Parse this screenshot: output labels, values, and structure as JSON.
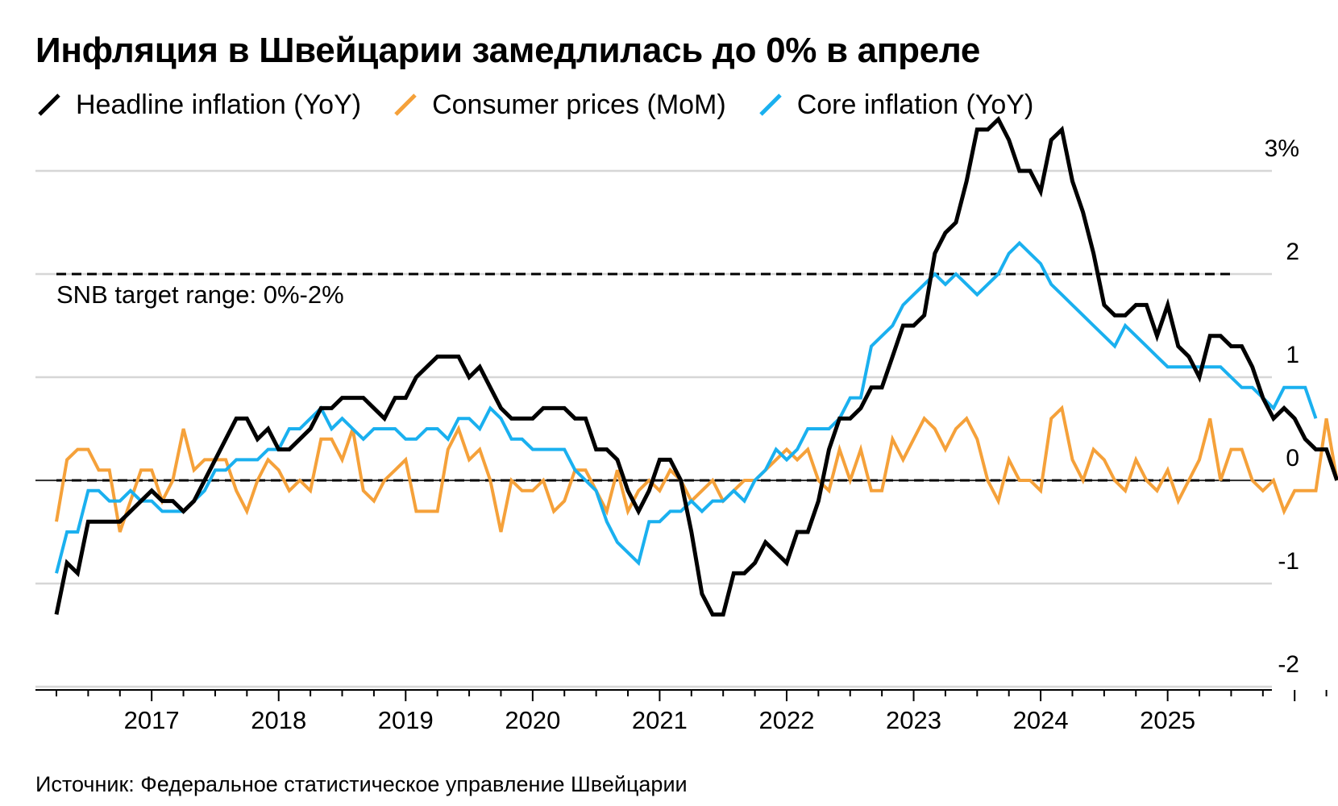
{
  "title": "Инфляция в Швейцарии замедлилась до 0% в апреле",
  "source": "Источник: Федеральное статистическое управление Швейцарии",
  "colors": {
    "headline": "#000000",
    "mom": "#f5a13a",
    "core": "#1ab0ef",
    "grid": "#d6d6d6"
  },
  "chart_data": {
    "type": "line",
    "x_start": "2016-04",
    "x_end": "2025-04",
    "xtick_labels": [
      "2017",
      "2018",
      "2019",
      "2020",
      "2021",
      "2022",
      "2023",
      "2024",
      "2025"
    ],
    "ytick_labels": [
      "3%",
      "2",
      "1",
      "0",
      "-1",
      "-2"
    ],
    "ylim": [
      -2,
      3.5
    ],
    "grid": true,
    "annotation": "SNB target range: 0%-2%",
    "reference_lines": [
      0,
      2
    ],
    "series": [
      {
        "name": "Headline inflation (YoY)",
        "values": [
          -1.3,
          -0.8,
          -0.9,
          -0.4,
          -0.4,
          -0.4,
          -0.4,
          -0.3,
          -0.2,
          -0.1,
          -0.2,
          -0.2,
          -0.3,
          -0.2,
          0.0,
          0.2,
          0.4,
          0.6,
          0.6,
          0.4,
          0.5,
          0.3,
          0.3,
          0.4,
          0.5,
          0.7,
          0.7,
          0.8,
          0.8,
          0.8,
          0.7,
          0.6,
          0.8,
          0.8,
          1.0,
          1.1,
          1.2,
          1.2,
          1.2,
          1.0,
          1.1,
          0.9,
          0.7,
          0.6,
          0.6,
          0.6,
          0.7,
          0.7,
          0.7,
          0.6,
          0.6,
          0.3,
          0.3,
          0.2,
          -0.1,
          -0.3,
          -0.1,
          0.2,
          0.2,
          0.0,
          -0.5,
          -1.1,
          -1.3,
          -1.3,
          -0.9,
          -0.9,
          -0.8,
          -0.6,
          -0.7,
          -0.8,
          -0.5,
          -0.5,
          -0.2,
          0.3,
          0.6,
          0.6,
          0.7,
          0.9,
          0.9,
          1.2,
          1.5,
          1.5,
          1.6,
          2.2,
          2.4,
          2.5,
          2.9,
          3.4,
          3.4,
          3.5,
          3.3,
          3.0,
          3.0,
          2.8,
          3.3,
          3.4,
          2.9,
          2.6,
          2.2,
          1.7,
          1.6,
          1.6,
          1.7,
          1.7,
          1.4,
          1.7,
          1.3,
          1.2,
          1.0,
          1.4,
          1.4,
          1.3,
          1.3,
          1.1,
          0.8,
          0.6,
          0.7,
          0.6,
          0.4,
          0.3,
          0.3,
          0.0
        ]
      },
      {
        "name": "Consumer prices (MoM)",
        "values": [
          -0.4,
          0.2,
          0.3,
          0.3,
          0.1,
          0.1,
          -0.5,
          -0.2,
          0.1,
          0.1,
          -0.2,
          0.0,
          0.5,
          0.1,
          0.2,
          0.2,
          0.2,
          -0.1,
          -0.3,
          0.0,
          0.2,
          0.1,
          -0.1,
          0.0,
          -0.1,
          0.4,
          0.4,
          0.2,
          0.5,
          -0.1,
          -0.2,
          0.0,
          0.1,
          0.2,
          -0.3,
          -0.3,
          -0.3,
          0.3,
          0.5,
          0.2,
          0.3,
          0.0,
          -0.5,
          0.0,
          -0.1,
          -0.1,
          0.0,
          -0.3,
          -0.2,
          0.1,
          0.1,
          -0.1,
          -0.3,
          0.1,
          -0.3,
          -0.1,
          0.0,
          -0.1,
          0.1,
          0.0,
          -0.2,
          -0.1,
          0.0,
          -0.2,
          -0.1,
          0.0,
          0.0,
          0.1,
          0.2,
          0.3,
          0.2,
          0.3,
          0.0,
          -0.1,
          0.3,
          0.0,
          0.3,
          -0.1,
          -0.1,
          0.4,
          0.2,
          0.4,
          0.6,
          0.5,
          0.3,
          0.5,
          0.6,
          0.4,
          0.0,
          -0.2,
          0.2,
          0.0,
          0.0,
          -0.1,
          0.6,
          0.7,
          0.2,
          0.0,
          0.3,
          0.2,
          0.0,
          -0.1,
          0.2,
          0.0,
          -0.1,
          0.1,
          -0.2,
          0.0,
          0.2,
          0.6,
          0.0,
          0.3,
          0.3,
          0.0,
          -0.1,
          0.0,
          -0.3,
          -0.1,
          -0.1,
          -0.1,
          0.6,
          0.0
        ]
      },
      {
        "name": "Core inflation (YoY)",
        "values": [
          -0.9,
          -0.5,
          -0.5,
          -0.1,
          -0.1,
          -0.2,
          -0.2,
          -0.1,
          -0.2,
          -0.2,
          -0.3,
          -0.3,
          -0.3,
          -0.2,
          -0.1,
          0.1,
          0.1,
          0.2,
          0.2,
          0.2,
          0.3,
          0.3,
          0.5,
          0.5,
          0.6,
          0.7,
          0.5,
          0.6,
          0.5,
          0.4,
          0.5,
          0.5,
          0.5,
          0.4,
          0.4,
          0.5,
          0.5,
          0.4,
          0.6,
          0.6,
          0.5,
          0.7,
          0.6,
          0.4,
          0.4,
          0.3,
          0.3,
          0.3,
          0.3,
          0.1,
          0.0,
          -0.1,
          -0.4,
          -0.6,
          -0.7,
          -0.8,
          -0.4,
          -0.4,
          -0.3,
          -0.3,
          -0.2,
          -0.3,
          -0.2,
          -0.2,
          -0.1,
          -0.2,
          0.0,
          0.1,
          0.3,
          0.2,
          0.3,
          0.5,
          0.5,
          0.5,
          0.6,
          0.8,
          0.8,
          1.3,
          1.4,
          1.5,
          1.7,
          1.8,
          1.9,
          2.0,
          1.9,
          2.0,
          1.9,
          1.8,
          1.9,
          2.0,
          2.2,
          2.3,
          2.2,
          2.1,
          1.9,
          1.8,
          1.7,
          1.6,
          1.5,
          1.4,
          1.3,
          1.5,
          1.4,
          1.3,
          1.2,
          1.1,
          1.1,
          1.1,
          1.1,
          1.1,
          1.1,
          1.0,
          0.9,
          0.9,
          0.8,
          0.7,
          0.9,
          0.9,
          0.9,
          0.6
        ]
      }
    ]
  }
}
